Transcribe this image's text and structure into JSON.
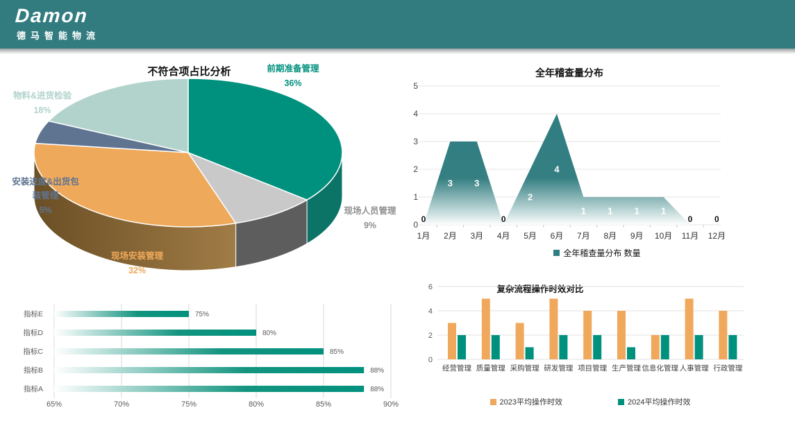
{
  "header": {
    "logo": "Damon",
    "subtitle": "德马智能物流",
    "bar_color": "#327C80"
  },
  "chart_data": [
    {
      "id": "nonconformance_pie",
      "type": "pie",
      "title": "不符合项占比分析",
      "labels": [
        "前期准备管理",
        "现场人员管理",
        "现场安装管理",
        "安装进度&出货包装管理",
        "物料&进货检验"
      ],
      "values": [
        36,
        9,
        32,
        5,
        18
      ],
      "pct_labels": [
        "36%",
        "9%",
        "32%",
        "5%",
        "18%"
      ],
      "colors": [
        "#00917E",
        "#C9C9C9",
        "#EFA95B",
        "#5E7491",
        "#B2D3CC"
      ],
      "side_colors": [
        "#0C7467",
        "#5D5D5D",
        [
          "#6B4F25",
          "#A07C46"
        ],
        "#46587A",
        "#7FA8A0"
      ],
      "effect": "3d"
    },
    {
      "id": "audit_volume_area",
      "type": "area",
      "title": "全年稽查量分布",
      "categories": [
        "1月",
        "2月",
        "3月",
        "4月",
        "5月",
        "6月",
        "7月",
        "8月",
        "9月",
        "10月",
        "11月",
        "12月"
      ],
      "values": [
        0,
        3,
        3,
        0,
        2,
        4,
        1,
        1,
        1,
        1,
        0,
        0
      ],
      "ylim": [
        0,
        5
      ],
      "yticks": [
        0,
        1,
        2,
        3,
        4,
        5
      ],
      "legend_label": "全年稽查量分布 数量",
      "color": "#2F7E82",
      "grid": true,
      "legend_position": "bottom"
    },
    {
      "id": "kpi_hbar",
      "type": "bar-horizontal",
      "categories": [
        "指标E",
        "指标D",
        "指标C",
        "指标B",
        "指标A"
      ],
      "values": [
        75,
        80,
        85,
        88,
        88
      ],
      "value_labels": [
        "75%",
        "80%",
        "85%",
        "88%",
        "88%"
      ],
      "xlim": [
        65,
        90
      ],
      "xticks": [
        65,
        70,
        75,
        80,
        85,
        90
      ],
      "xtick_labels": [
        "65%",
        "70%",
        "75%",
        "80%",
        "85%",
        "90%"
      ],
      "color": "#00917E",
      "grid": true
    },
    {
      "id": "process_time_bars",
      "type": "bar",
      "title": "复杂流程操作时效对比",
      "categories": [
        "经营管理",
        "质量管理",
        "采购管理",
        "研发管理",
        "项目管理",
        "生产管理",
        "信息化管理",
        "人事管理",
        "行政管理"
      ],
      "series": [
        {
          "name": "2023平均操作时效",
          "color": "#F0A85C",
          "values": [
            3,
            5,
            3,
            5,
            4,
            4,
            2,
            5,
            4
          ]
        },
        {
          "name": "2024平均操作时效",
          "color": "#00917E",
          "values": [
            2,
            2,
            1,
            2,
            2,
            1,
            2,
            2,
            2
          ]
        }
      ],
      "ylim": [
        0,
        6
      ],
      "yticks": [
        0,
        2,
        4,
        6
      ],
      "grid": true,
      "legend_position": "bottom"
    }
  ]
}
